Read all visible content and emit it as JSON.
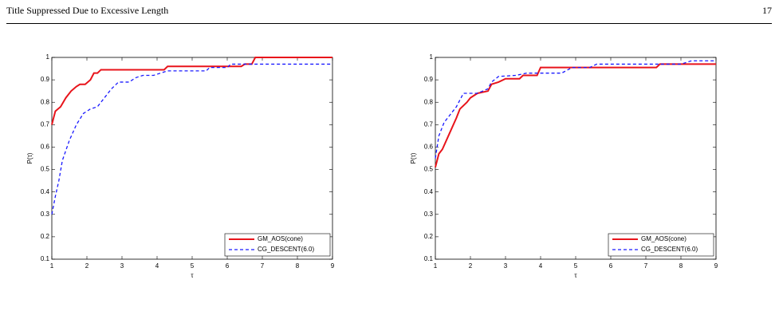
{
  "header": {
    "title": "Title Suppressed Due to Excessive Length",
    "page_number": "17"
  },
  "chart_data": [
    {
      "type": "line",
      "xlabel": "τ",
      "ylabel": "P(τ)",
      "xlim": [
        1,
        9
      ],
      "ylim": [
        0.1,
        1
      ],
      "xticks": [
        1,
        2,
        3,
        4,
        5,
        6,
        7,
        8,
        9
      ],
      "yticks": [
        0.1,
        0.2,
        0.3,
        0.4,
        0.5,
        0.6,
        0.7,
        0.8,
        0.9,
        1
      ],
      "legend": "lower right",
      "series": [
        {
          "name": "GM_AOS(cone)",
          "color": "#e8141b",
          "dashed": false,
          "x": [
            1,
            1.05,
            1.1,
            1.25,
            1.4,
            1.55,
            1.7,
            1.8,
            1.95,
            2.1,
            2.2,
            2.3,
            2.4,
            4.2,
            4.3,
            6.4,
            6.5,
            6.7,
            6.8,
            9
          ],
          "values": [
            0.7,
            0.73,
            0.76,
            0.78,
            0.82,
            0.85,
            0.87,
            0.88,
            0.88,
            0.9,
            0.93,
            0.93,
            0.945,
            0.945,
            0.96,
            0.96,
            0.97,
            0.97,
            1,
            1
          ]
        },
        {
          "name": "CG_DESCENT(6.0)",
          "color": "#1a1aff",
          "dashed": true,
          "x": [
            1,
            1.1,
            1.2,
            1.3,
            1.5,
            1.7,
            1.9,
            2.1,
            2.3,
            2.5,
            2.7,
            2.9,
            3.2,
            3.4,
            3.6,
            3.9,
            4.1,
            4.3,
            5.4,
            5.5,
            6,
            6.1,
            9
          ],
          "values": [
            0.3,
            0.38,
            0.45,
            0.54,
            0.63,
            0.7,
            0.75,
            0.77,
            0.78,
            0.82,
            0.86,
            0.89,
            0.89,
            0.91,
            0.92,
            0.92,
            0.93,
            0.94,
            0.94,
            0.955,
            0.955,
            0.97,
            0.97
          ]
        }
      ]
    },
    {
      "type": "line",
      "xlabel": "τ",
      "ylabel": "P(τ)",
      "xlim": [
        1,
        9
      ],
      "ylim": [
        0.1,
        1
      ],
      "xticks": [
        1,
        2,
        3,
        4,
        5,
        6,
        7,
        8,
        9
      ],
      "yticks": [
        0.1,
        0.2,
        0.3,
        0.4,
        0.5,
        0.6,
        0.7,
        0.8,
        0.9,
        1
      ],
      "legend": "lower right",
      "series": [
        {
          "name": "GM_AOS(cone)",
          "color": "#e8141b",
          "dashed": false,
          "x": [
            1,
            1.1,
            1.2,
            1.4,
            1.6,
            1.7,
            1.9,
            2,
            2.2,
            2.5,
            2.6,
            2.8,
            3,
            3.4,
            3.5,
            3.9,
            4,
            7.3,
            7.4,
            9
          ],
          "values": [
            0.51,
            0.57,
            0.59,
            0.66,
            0.73,
            0.77,
            0.8,
            0.82,
            0.84,
            0.85,
            0.88,
            0.89,
            0.905,
            0.905,
            0.92,
            0.92,
            0.955,
            0.955,
            0.97,
            0.97
          ]
        },
        {
          "name": "CG_DESCENT(6.0)",
          "color": "#1a1aff",
          "dashed": true,
          "x": [
            1,
            1.1,
            1.25,
            1.4,
            1.6,
            1.8,
            2.2,
            2.5,
            2.6,
            2.8,
            3.3,
            3.6,
            4.6,
            4.9,
            5.4,
            5.6,
            8,
            8.3,
            9
          ],
          "values": [
            0.55,
            0.65,
            0.71,
            0.74,
            0.78,
            0.84,
            0.84,
            0.86,
            0.89,
            0.915,
            0.92,
            0.93,
            0.93,
            0.955,
            0.955,
            0.97,
            0.97,
            0.985,
            0.985
          ]
        }
      ]
    }
  ]
}
